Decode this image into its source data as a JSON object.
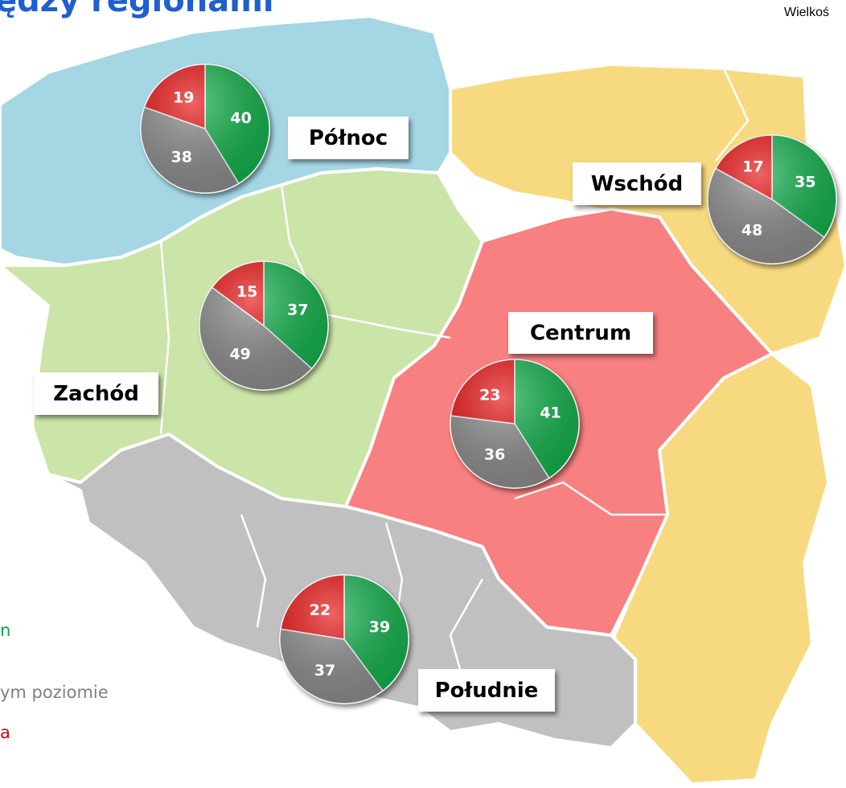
{
  "header": {
    "title": "ędzy regionami",
    "note": "Wielkoś"
  },
  "legend": [
    {
      "text": "n",
      "color": "#0aa24a"
    },
    {
      "text": "ym poziomie",
      "color": "#808080"
    },
    {
      "text": "a",
      "color": "#e00000"
    }
  ],
  "slice_colors": [
    "#12b04c",
    "#8c8c8c",
    "#e81010"
  ],
  "regions": [
    {
      "label": "Północ",
      "pie": [
        40,
        38,
        19
      ]
    },
    {
      "label": "Wschód",
      "pie": [
        35,
        48,
        17
      ]
    },
    {
      "label": "Zachód",
      "pie": [
        37,
        49,
        15
      ]
    },
    {
      "label": "Centrum",
      "pie": [
        41,
        36,
        23
      ]
    },
    {
      "label": "Południe",
      "pie": [
        39,
        37,
        22
      ]
    }
  ]
}
